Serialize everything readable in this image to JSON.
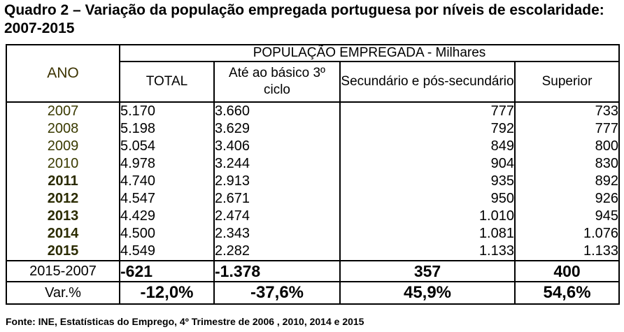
{
  "title": "Quadro 2 – Variação da população empregada portuguesa por níveis de escolaridade: 2007-2015",
  "table": {
    "group_header": "POPULAÇÃO EMPREGADA - Milhares",
    "year_header": "ANO",
    "columns": [
      "TOTAL",
      "Até ao básico 3º ciclo",
      "Secundário e pós-secundário",
      "Superior"
    ],
    "rows": [
      {
        "year": "2007",
        "total": "5.170",
        "basico": "3.660",
        "secundario": "777",
        "superior": "733"
      },
      {
        "year": "2008",
        "total": "5.198",
        "basico": "3.629",
        "secundario": "792",
        "superior": "777"
      },
      {
        "year": "2009",
        "total": "5.054",
        "basico": "3.406",
        "secundario": "849",
        "superior": "800"
      },
      {
        "year": "2010",
        "total": "4.978",
        "basico": "3.244",
        "secundario": "904",
        "superior": "830"
      },
      {
        "year": "2011",
        "total": "4.740",
        "basico": "2.913",
        "secundario": "935",
        "superior": "892"
      },
      {
        "year": "2012",
        "total": "4.547",
        "basico": "2.671",
        "secundario": "950",
        "superior": "926"
      },
      {
        "year": "2013",
        "total": "4.429",
        "basico": "2.474",
        "secundario": "1.010",
        "superior": "945"
      },
      {
        "year": "2014",
        "total": "4.500",
        "basico": "2.343",
        "secundario": "1.081",
        "superior": "1.076"
      },
      {
        "year": "2015",
        "total": "4.549",
        "basico": "2.282",
        "secundario": "1.133",
        "superior": "1.133"
      }
    ],
    "diff": {
      "label": "2015-2007",
      "total": "-621",
      "basico": "-1.378",
      "secundario": "357",
      "superior": "400"
    },
    "pct": {
      "label": "Var.%",
      "total": "-12,0%",
      "basico": "-37,6%",
      "secundario": "45,9%",
      "superior": "54,6%"
    }
  },
  "source": "Fonte: INE, Estatísticas do Emprego, 4º Trimestre de 2006 , 2010, 2014 e 2015"
}
